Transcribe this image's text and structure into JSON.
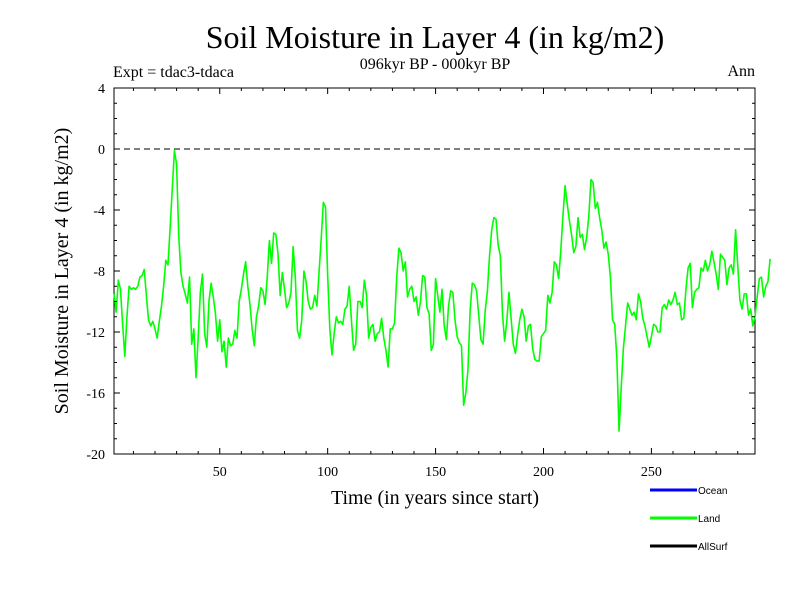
{
  "chart_data": {
    "type": "line",
    "title": "Soil Moisture in Layer 4 (in kg/m2)",
    "subtitle": "096kyr BP - 000kyr BP",
    "expt_label": "Expt = tdac3-tdaca",
    "season_label": "Ann",
    "xlabel": "Time (in years since start)",
    "ylabel": "Soil Moisture in Layer 4 (in kg/m2)",
    "xlim": [
      1,
      298
    ],
    "ylim": [
      -20,
      4
    ],
    "x_ticks": [
      50,
      100,
      150,
      200,
      250
    ],
    "y_ticks": [
      4,
      0,
      -4,
      -8,
      -12,
      -16,
      -20
    ],
    "y_tick_labels": [
      "4",
      "0",
      "-4",
      "-8",
      "-12",
      "-16",
      "-20"
    ],
    "reference_line": {
      "y": 0,
      "style": "dashed"
    },
    "legend": [
      {
        "name": "Ocean",
        "color": "#0000ff"
      },
      {
        "name": "Land",
        "color": "#00ff00"
      },
      {
        "name": "AllSurf",
        "color": "#000000"
      }
    ],
    "series": [
      {
        "name": "Land",
        "color": "#00ff00",
        "x_start": 1,
        "x_step": 1,
        "values": [
          -9.5,
          -10.7,
          -8.6,
          -9.2,
          -11.5,
          -13.6,
          -11.0,
          -9.0,
          -9.2,
          -9.1,
          -9.2,
          -9.0,
          -8.4,
          -8.3,
          -7.9,
          -9.6,
          -11.2,
          -11.6,
          -11.3,
          -11.8,
          -12.4,
          -11.3,
          -10.3,
          -9.0,
          -7.3,
          -7.6,
          -5.2,
          -2.6,
          -0.1,
          -1.0,
          -5.7,
          -8.1,
          -9.0,
          -9.5,
          -10.1,
          -8.4,
          -12.8,
          -11.8,
          -15.0,
          -12.4,
          -9.4,
          -8.2,
          -12.1,
          -13.0,
          -10.0,
          -8.8,
          -9.7,
          -10.8,
          -12.6,
          -11.2,
          -13.3,
          -12.6,
          -14.3,
          -12.4,
          -12.9,
          -12.8,
          -11.9,
          -12.4,
          -10.0,
          -9.2,
          -8.2,
          -7.4,
          -9.0,
          -10.2,
          -11.8,
          -12.9,
          -11.0,
          -10.3,
          -9.1,
          -9.3,
          -10.2,
          -8.4,
          -6.0,
          -7.5,
          -5.5,
          -5.6,
          -6.9,
          -9.6,
          -8.1,
          -9.2,
          -10.4,
          -10.1,
          -9.4,
          -6.4,
          -8.4,
          -11.9,
          -12.4,
          -11.2,
          -8.0,
          -8.7,
          -10.0,
          -10.5,
          -10.4,
          -9.6,
          -10.3,
          -8.1,
          -5.9,
          -3.5,
          -3.8,
          -8.3,
          -11.8,
          -13.5,
          -12.1,
          -11.0,
          -11.4,
          -11.3,
          -11.5,
          -10.5,
          -10.3,
          -9.0,
          -11.2,
          -13.2,
          -12.8,
          -10.0,
          -10.0,
          -10.4,
          -8.6,
          -9.6,
          -12.4,
          -11.7,
          -11.5,
          -12.6,
          -12.1,
          -12.0,
          -11.1,
          -12.4,
          -13.2,
          -14.3,
          -11.8,
          -11.8,
          -11.4,
          -8.4,
          -6.5,
          -6.8,
          -8.0,
          -7.4,
          -9.7,
          -9.2,
          -9.0,
          -10.0,
          -9.7,
          -10.9,
          -10.0,
          -8.3,
          -8.4,
          -10.4,
          -10.8,
          -13.2,
          -12.8,
          -8.5,
          -9.6,
          -10.7,
          -9.2,
          -11.6,
          -12.5,
          -10.3,
          -9.3,
          -9.4,
          -11.2,
          -12.3,
          -12.7,
          -12.9,
          -16.8,
          -16.0,
          -14.5,
          -10.6,
          -8.8,
          -8.9,
          -9.3,
          -10.9,
          -12.5,
          -12.8,
          -10.6,
          -9.3,
          -7.0,
          -5.3,
          -4.5,
          -4.6,
          -6.3,
          -7.0,
          -10.8,
          -12.6,
          -11.3,
          -9.4,
          -11.1,
          -12.8,
          -13.4,
          -12.2,
          -11.2,
          -10.5,
          -11.0,
          -12.6,
          -11.6,
          -11.5,
          -13.1,
          -13.8,
          -13.9,
          -13.9,
          -12.3,
          -12.1,
          -11.9,
          -9.6,
          -10.1,
          -9.4,
          -7.4,
          -7.6,
          -8.5,
          -6.7,
          -4.4,
          -2.4,
          -3.6,
          -4.7,
          -5.6,
          -6.8,
          -6.4,
          -4.5,
          -5.8,
          -5.6,
          -6.6,
          -5.8,
          -4.4,
          -2.0,
          -2.2,
          -3.9,
          -3.5,
          -4.5,
          -5.3,
          -6.5,
          -6.1,
          -6.9,
          -8.4,
          -11.2,
          -11.5,
          -13.7,
          -18.5,
          -15.7,
          -13.1,
          -11.6,
          -10.1,
          -10.5,
          -10.9,
          -10.7,
          -11.2,
          -9.5,
          -10.0,
          -11.1,
          -11.6,
          -12.3,
          -13.0,
          -12.3,
          -11.5,
          -11.6,
          -12.0,
          -12.0,
          -10.4,
          -10.2,
          -10.5,
          -9.9,
          -10.2,
          -9.9,
          -9.4,
          -10.2,
          -10.1,
          -11.2,
          -11.1,
          -9.2,
          -7.8,
          -7.5,
          -10.4,
          -9.4,
          -9.2,
          -9.1,
          -7.8,
          -8.0,
          -7.3,
          -8.0,
          -7.6,
          -6.7,
          -7.4,
          -8.2,
          -9.2,
          -6.9,
          -7.1,
          -7.3,
          -8.9,
          -7.8,
          -7.6,
          -8.2,
          -5.3,
          -7.6,
          -9.9,
          -10.5,
          -9.5,
          -9.5,
          -10.9,
          -10.5,
          -11.6,
          -11.0,
          -9.7,
          -8.5,
          -8.4,
          -9.7,
          -9.0,
          -8.7,
          -7.2
        ]
      }
    ]
  }
}
